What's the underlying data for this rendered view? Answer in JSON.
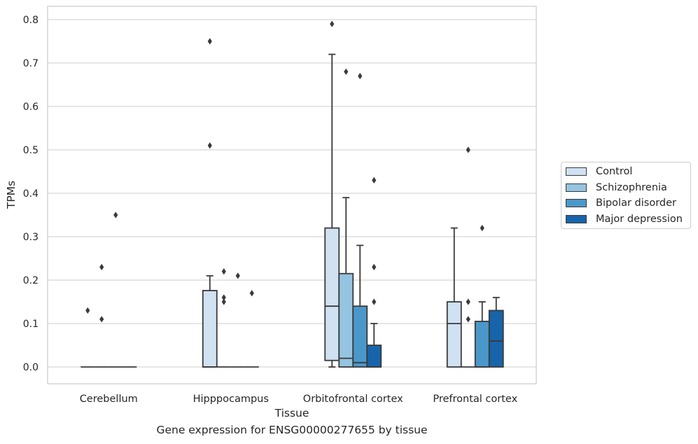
{
  "chart_data": {
    "type": "box",
    "caption": "Gene expression for ENSG00000277655 by tissue",
    "xlabel": "Tissue",
    "ylabel": "TPMs",
    "ylim": [
      -0.04,
      0.83
    ],
    "yticks": [
      0.0,
      0.1,
      0.2,
      0.3,
      0.4,
      0.5,
      0.6,
      0.7,
      0.8
    ],
    "ytick_labels": [
      "0.0",
      "0.1",
      "0.2",
      "0.3",
      "0.4",
      "0.5",
      "0.6",
      "0.7",
      "0.8"
    ],
    "grid": true,
    "legend_position": "right",
    "categories": [
      "Cerebellum",
      "Hipppocampus",
      "Orbitofrontal cortex",
      "Prefrontal cortex"
    ],
    "series": [
      {
        "name": "Control",
        "color": "#d0e1f2",
        "boxes": [
          {
            "q1": 0,
            "median": 0,
            "q3": 0,
            "whislo": 0,
            "whishi": 0,
            "fliers": [
              0.13
            ]
          },
          {
            "q1": 0,
            "median": 0,
            "q3": 0.176,
            "whislo": 0,
            "whishi": 0.21,
            "fliers": [
              0.51,
              0.75
            ]
          },
          {
            "q1": 0.015,
            "median": 0.14,
            "q3": 0.32,
            "whislo": 0,
            "whishi": 0.72,
            "fliers": [
              0.79
            ]
          },
          {
            "q1": 0,
            "median": 0.1,
            "q3": 0.15,
            "whislo": 0,
            "whishi": 0.32,
            "fliers": []
          }
        ]
      },
      {
        "name": "Schizophrenia",
        "color": "#94c4df",
        "boxes": [
          {
            "q1": 0,
            "median": 0,
            "q3": 0,
            "whislo": 0,
            "whishi": 0,
            "fliers": [
              0.23,
              0.11
            ]
          },
          {
            "q1": 0,
            "median": 0,
            "q3": 0,
            "whislo": 0,
            "whishi": 0,
            "fliers": [
              0.22,
              0.16,
              0.15
            ]
          },
          {
            "q1": 0,
            "median": 0.02,
            "q3": 0.215,
            "whislo": 0,
            "whishi": 0.39,
            "fliers": [
              0.68
            ]
          },
          {
            "q1": 0,
            "median": 0,
            "q3": 0,
            "whislo": 0,
            "whishi": 0,
            "fliers": [
              0.5,
              0.15,
              0.11
            ]
          }
        ]
      },
      {
        "name": "Bipolar disorder",
        "color": "#4a98c9",
        "boxes": [
          {
            "q1": 0,
            "median": 0,
            "q3": 0,
            "whislo": 0,
            "whishi": 0,
            "fliers": [
              0.35
            ]
          },
          {
            "q1": 0,
            "median": 0,
            "q3": 0,
            "whislo": 0,
            "whishi": 0,
            "fliers": [
              0.21
            ]
          },
          {
            "q1": 0,
            "median": 0.01,
            "q3": 0.14,
            "whislo": 0,
            "whishi": 0.28,
            "fliers": [
              0.67
            ]
          },
          {
            "q1": 0,
            "median": 0,
            "q3": 0.105,
            "whislo": 0,
            "whishi": 0.15,
            "fliers": [
              0.32
            ]
          }
        ]
      },
      {
        "name": "Major depression",
        "color": "#1764ab",
        "boxes": [
          {
            "q1": 0,
            "median": 0,
            "q3": 0,
            "whislo": 0,
            "whishi": 0,
            "fliers": []
          },
          {
            "q1": 0,
            "median": 0,
            "q3": 0,
            "whislo": 0,
            "whishi": 0,
            "fliers": [
              0.17
            ]
          },
          {
            "q1": 0,
            "median": 0,
            "q3": 0.05,
            "whislo": 0,
            "whishi": 0.1,
            "fliers": [
              0.43,
              0.23,
              0.15
            ]
          },
          {
            "q1": 0,
            "median": 0.06,
            "q3": 0.13,
            "whislo": 0,
            "whishi": 0.16,
            "fliers": []
          }
        ]
      }
    ]
  }
}
